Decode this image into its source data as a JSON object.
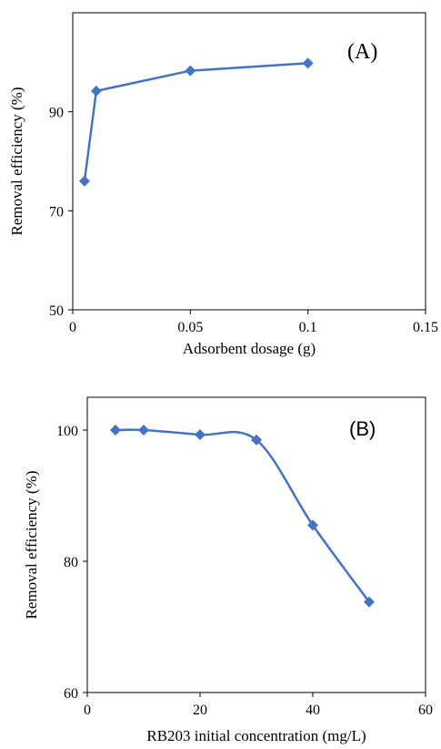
{
  "chart_data": [
    {
      "type": "line",
      "panel_label": "(A)",
      "xlabel": "Adsorbent dosage (g)",
      "ylabel": "Removal efficiency (%)",
      "xlim": [
        0,
        0.15
      ],
      "ylim": [
        50,
        110
      ],
      "xticks": [
        0,
        0.05,
        0.1,
        0.15
      ],
      "xtick_labels": [
        "0",
        "0.05",
        "0.1",
        "0.15"
      ],
      "yticks": [
        50,
        70,
        90
      ],
      "ytick_labels": [
        "50",
        "70",
        "90"
      ],
      "grid": false,
      "marker": "diamond",
      "smooth": false,
      "color": "#4472C4",
      "series": [
        {
          "x": [
            0.005,
            0.01,
            0.05,
            0.1
          ],
          "y": [
            76,
            94.2,
            98.3,
            99.8
          ]
        }
      ]
    },
    {
      "type": "line",
      "panel_label": "(B)",
      "xlabel": "RB203 initial concentration (mg/L)",
      "ylabel": "Removal efficiency (%)",
      "xlim": [
        0,
        60
      ],
      "ylim": [
        60,
        105
      ],
      "xticks": [
        0,
        20,
        40,
        60
      ],
      "xtick_labels": [
        "0",
        "20",
        "40",
        "60"
      ],
      "yticks": [
        60,
        80,
        100
      ],
      "ytick_labels": [
        "60",
        "80",
        "100"
      ],
      "grid": false,
      "marker": "diamond",
      "smooth": true,
      "color": "#4472C4",
      "series": [
        {
          "x": [
            5,
            10,
            20,
            30,
            40,
            50
          ],
          "y": [
            100,
            100,
            99.3,
            98.5,
            85.5,
            73.8
          ]
        }
      ]
    }
  ]
}
